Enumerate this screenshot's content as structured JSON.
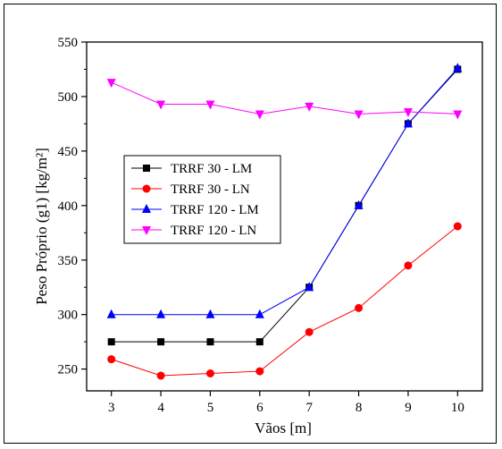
{
  "chart_data": {
    "type": "line",
    "title": "",
    "xlabel": "Vãos [m]",
    "ylabel": "Peso Próprio (g1) [kg/m²]",
    "x": [
      3,
      4,
      5,
      6,
      7,
      8,
      9,
      10
    ],
    "xlim": [
      2.5,
      10.5
    ],
    "ylim": [
      230,
      550
    ],
    "xticks": [
      "3",
      "4",
      "5",
      "6",
      "7",
      "8",
      "9",
      "10"
    ],
    "yticks": [
      250,
      300,
      350,
      400,
      450,
      500,
      550
    ],
    "yticklabels": [
      "250",
      "300",
      "350",
      "400",
      "450",
      "500",
      "550"
    ],
    "grid": false,
    "legend_position": "middle-left",
    "series": [
      {
        "name": "TRRF 30 - LM",
        "color": "#000000",
        "marker": "square",
        "values": [
          275,
          275,
          275,
          275,
          325,
          400,
          475,
          525
        ]
      },
      {
        "name": "TRRF 30 - LN",
        "color": "#ff0000",
        "marker": "circle",
        "values": [
          259,
          244,
          246,
          248,
          284,
          306,
          345,
          381
        ]
      },
      {
        "name": "TRRF 120 - LM",
        "color": "#0000ff",
        "marker": "triangle-up",
        "values": [
          300,
          300,
          300,
          300,
          325,
          400,
          475,
          526
        ]
      },
      {
        "name": "TRRF 120 - LN",
        "color": "#ff00ff",
        "marker": "triangle-down",
        "values": [
          513,
          493,
          493,
          484,
          491,
          484,
          486,
          484
        ]
      }
    ]
  }
}
